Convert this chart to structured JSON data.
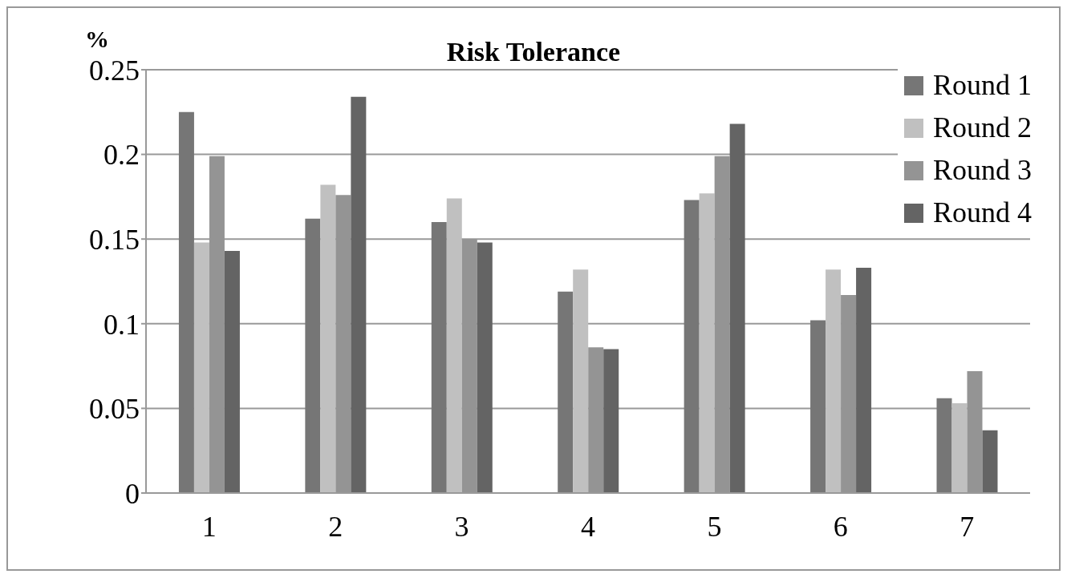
{
  "chart_data": {
    "type": "bar",
    "title": "Risk Tolerance",
    "ylabel": "%",
    "categories": [
      "1",
      "2",
      "3",
      "4",
      "5",
      "6",
      "7"
    ],
    "series": [
      {
        "name": "Round 1",
        "color": "#767676",
        "values": [
          0.225,
          0.162,
          0.16,
          0.119,
          0.173,
          0.102,
          0.056
        ]
      },
      {
        "name": "Round 2",
        "color": "#c0c0c0",
        "values": [
          0.148,
          0.182,
          0.174,
          0.132,
          0.177,
          0.132,
          0.053
        ]
      },
      {
        "name": "Round 3",
        "color": "#949494",
        "values": [
          0.199,
          0.176,
          0.15,
          0.086,
          0.199,
          0.117,
          0.072
        ]
      },
      {
        "name": "Round 4",
        "color": "#646464",
        "values": [
          0.143,
          0.234,
          0.148,
          0.085,
          0.218,
          0.133,
          0.037
        ]
      }
    ],
    "ylim": [
      0,
      0.25
    ],
    "yticks": [
      0,
      0.05,
      0.1,
      0.15,
      0.2,
      0.25
    ],
    "grid": "y",
    "legend": "top right"
  }
}
